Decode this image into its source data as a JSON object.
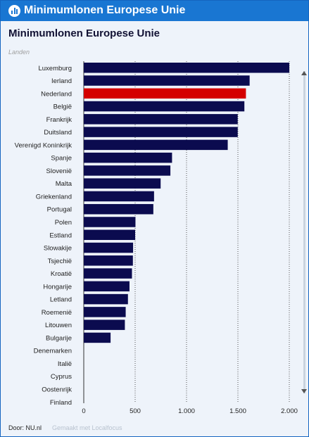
{
  "header": {
    "title": "Minimumlonen Europese Unie",
    "icon": "bar-chart-icon"
  },
  "footer": {
    "source": "Door: NU.nl",
    "credit": "Gemaakt met Localfocus"
  },
  "chart_data": {
    "type": "bar",
    "orientation": "horizontal",
    "title": "Minimumlonen Europese Unie",
    "category_axis_title": "Landen",
    "categories": [
      "Luxemburg",
      "Ierland",
      "Nederland",
      "België",
      "Frankrijk",
      "Duitsland",
      "Verenigd Koninkrijk",
      "Spanje",
      "Slovenië",
      "Malta",
      "Griekenland",
      "Portugal",
      "Polen",
      "Estland",
      "Slowakije",
      "Tsjechië",
      "Kroatië",
      "Hongarije",
      "Letland",
      "Roemenië",
      "Litouwen",
      "Bulgarije",
      "Denemarken",
      "Italië",
      "Cyprus",
      "Oostenrijk",
      "Finland"
    ],
    "values": [
      2000,
      1614,
      1578,
      1563,
      1498,
      1498,
      1401,
      859,
      843,
      748,
      684,
      677,
      503,
      500,
      480,
      478,
      469,
      445,
      430,
      408,
      400,
      261,
      0,
      0,
      0,
      0,
      0
    ],
    "highlight": "Nederland",
    "xlim": [
      0,
      2000
    ],
    "xticks": [
      0,
      500,
      1000,
      1500,
      2000
    ],
    "xtick_labels": [
      "0",
      "500",
      "1.000",
      "1.500",
      "2.000"
    ],
    "grid": "vertical dotted",
    "colors": {
      "bar": "#0b0b4f",
      "highlight": "#d40000"
    }
  }
}
